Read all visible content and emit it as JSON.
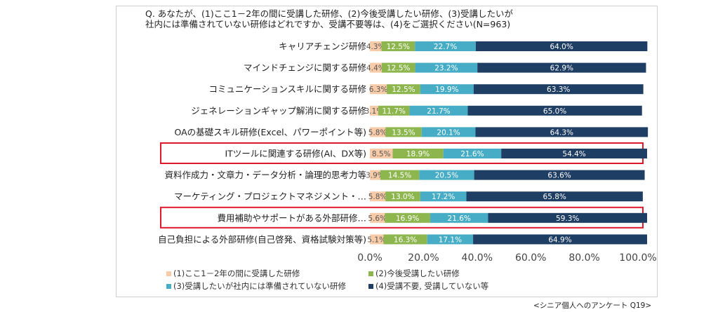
{
  "question": {
    "line1": "Q. あなたが、(1)ここ1－2年の間に受講した研修、(2)今後受講したい研修、(3)受講したいが",
    "line2": "社内には準備されていない研修はどれですか、受講不要等は、(4)をご選択ください(N=963)"
  },
  "source": "<シニア個人へのアンケート Q19>",
  "colors": {
    "s1": "#f8cba8",
    "s2": "#8db64e",
    "s3": "#47acc6",
    "s4": "#1f3e64",
    "highlight": "#e0182b"
  },
  "chart_data": {
    "type": "bar",
    "orientation": "horizontal",
    "stacked": "percent",
    "categories": [
      "キャリアチェンジ研修",
      "マインドチェンジに関する研修",
      "コミュニケーションスキルに関する研修",
      "ジェネレーションギャップ解消に関する研修",
      "OAの基礎スキル研修(Excel、パワーポイント等)",
      "ITツールに関連する研修(AI、DX等)",
      "資料作成力・文章力・データ分析・論理的思考力等",
      "マーケティング・プロジェクトマネジメント・…",
      "費用補助やサポートがある外部研修…",
      "自己負担による外部研修(自己啓発、資格試験対策等)"
    ],
    "series": [
      {
        "name": "(1)ここ1－2年の間に受講した研修",
        "values": [
          4.3,
          4.4,
          6.3,
          3.1,
          5.8,
          8.5,
          3.9,
          5.8,
          5.6,
          5.1
        ],
        "labels": [
          "4.3%",
          "4.4%",
          "6.3%",
          "3.1%",
          "5.8%",
          "8.5%",
          "3.9%",
          "5.8%",
          "5.6%",
          "5.1%"
        ]
      },
      {
        "name": "(2)今後受講したい研修",
        "values": [
          12.5,
          12.5,
          12.5,
          11.7,
          13.5,
          18.9,
          14.5,
          13.0,
          16.9,
          16.3
        ],
        "labels": [
          "12.5%",
          "12.5%",
          "12.5%",
          "11.7%",
          "13.5%",
          "18.9%",
          "14.5%",
          "13.0%",
          "16.9%",
          "16.3%"
        ]
      },
      {
        "name": "(3)受講したいが社内には準備されていない研修",
        "values": [
          22.7,
          23.2,
          19.9,
          21.7,
          20.1,
          21.6,
          20.5,
          17.2,
          21.6,
          17.1
        ],
        "labels": [
          "22.7%",
          "23.2%",
          "19.9%",
          "21.7%",
          "20.1%",
          "21.6%",
          "20.5%",
          "17.2%",
          "21.6%",
          "17.1%"
        ]
      },
      {
        "name": "(4)受講不要, 受講していない等",
        "values": [
          64.0,
          62.9,
          63.3,
          65.0,
          64.3,
          54.4,
          63.6,
          65.8,
          59.3,
          64.9
        ],
        "labels": [
          "64.0%",
          "62.9%",
          "63.3%",
          "65.0%",
          "64.3%",
          "54.4%",
          "63.6%",
          "65.8%",
          "59.3%",
          "64.9%"
        ]
      }
    ],
    "xlim": [
      0,
      100
    ],
    "xticks": [
      "0.0%",
      "20.0%",
      "40.0%",
      "60.0%",
      "80.0%",
      "100.0%"
    ],
    "highlighted_categories": [
      "ITツールに関連する研修(AI、DX等)",
      "費用補助やサポートがある外部研修…"
    ],
    "legend_position": "bottom-left",
    "grid": false
  }
}
